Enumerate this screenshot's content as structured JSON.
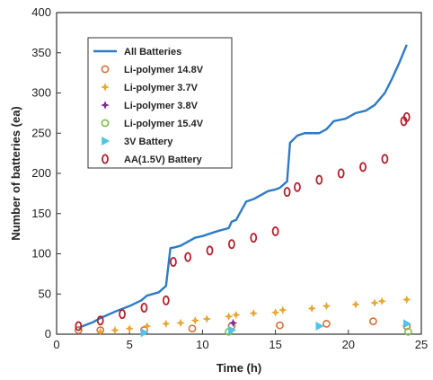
{
  "chart_data": {
    "type": "line",
    "xlabel": "Time (h)",
    "ylabel": "Number of batteries (ea)",
    "xlim": [
      0,
      25
    ],
    "ylim": [
      0,
      400
    ],
    "xticks": [
      0,
      5,
      10,
      15,
      20,
      25
    ],
    "yticks": [
      0,
      50,
      100,
      150,
      200,
      250,
      300,
      350,
      400
    ],
    "grid": false,
    "legend_position": "top-left",
    "series": [
      {
        "name": "All Batteries",
        "kind": "line",
        "color": "#2e7bc4",
        "x": [
          1.5,
          2.5,
          3.0,
          4.0,
          5.0,
          5.8,
          6.2,
          7.0,
          7.5,
          7.8,
          8.1,
          8.5,
          9.0,
          9.5,
          10.0,
          11.0,
          11.8,
          12.0,
          12.3,
          13.0,
          13.5,
          14.5,
          15.0,
          15.3,
          15.8,
          16.0,
          16.5,
          17.0,
          18.0,
          18.5,
          19.0,
          19.8,
          20.5,
          21.2,
          21.8,
          22.5,
          23.0,
          23.5,
          24.0
        ],
        "y": [
          8,
          15,
          20,
          28,
          35,
          42,
          48,
          52,
          60,
          107,
          108,
          110,
          115,
          120,
          122,
          128,
          132,
          140,
          142,
          165,
          168,
          178,
          180,
          182,
          190,
          238,
          247,
          250,
          250,
          255,
          265,
          268,
          275,
          278,
          285,
          300,
          318,
          338,
          360
        ]
      },
      {
        "name": "Li-polymer 14.8V",
        "kind": "scatter",
        "marker": "circle-open",
        "color": "#d4713a",
        "x": [
          1.5,
          3.0,
          6.0,
          9.3,
          12.0,
          15.3,
          18.5,
          21.7,
          24.0
        ],
        "y": [
          5,
          5,
          5,
          7,
          10,
          11,
          13,
          16,
          10
        ]
      },
      {
        "name": "Li-polymer 3.7V",
        "kind": "scatter",
        "marker": "star",
        "color": "#e8a632",
        "x": [
          3.0,
          4.0,
          5.0,
          6.2,
          7.5,
          8.5,
          9.5,
          10.3,
          11.8,
          12.3,
          13.5,
          15.0,
          15.5,
          17.5,
          18.5,
          20.5,
          21.8,
          22.3,
          24.0
        ],
        "y": [
          3,
          5,
          7,
          10,
          13,
          14,
          17,
          19,
          22,
          24,
          26,
          27,
          30,
          32,
          35,
          37,
          39,
          41,
          43
        ]
      },
      {
        "name": "Li-polymer 3.8V",
        "kind": "scatter",
        "marker": "star",
        "color": "#7a2f8f",
        "x": [
          12.1
        ],
        "y": [
          14
        ]
      },
      {
        "name": "Li-polymer 15.4V",
        "kind": "scatter",
        "marker": "circle-open",
        "color": "#7fb94a",
        "x": [
          11.8,
          24.1
        ],
        "y": [
          3,
          3
        ]
      },
      {
        "name": "3V Battery",
        "kind": "scatter",
        "marker": "triangle-right",
        "color": "#4fc4e8",
        "x": [
          6.0,
          12.0,
          18.0,
          24.0
        ],
        "y": [
          2,
          5,
          10,
          13
        ]
      },
      {
        "name": "AA(1.5V) Battery",
        "kind": "scatter",
        "marker": "diamond-open",
        "color": "#b2222f",
        "x": [
          1.5,
          3.0,
          4.5,
          6.0,
          7.5,
          8.0,
          9.0,
          10.5,
          12.0,
          13.5,
          15.0,
          15.8,
          16.5,
          18.0,
          19.5,
          21.0,
          22.5,
          23.8,
          24.0
        ],
        "y": [
          10,
          17,
          25,
          33,
          42,
          90,
          96,
          104,
          112,
          120,
          128,
          177,
          183,
          192,
          200,
          208,
          218,
          265,
          270
        ]
      }
    ]
  }
}
